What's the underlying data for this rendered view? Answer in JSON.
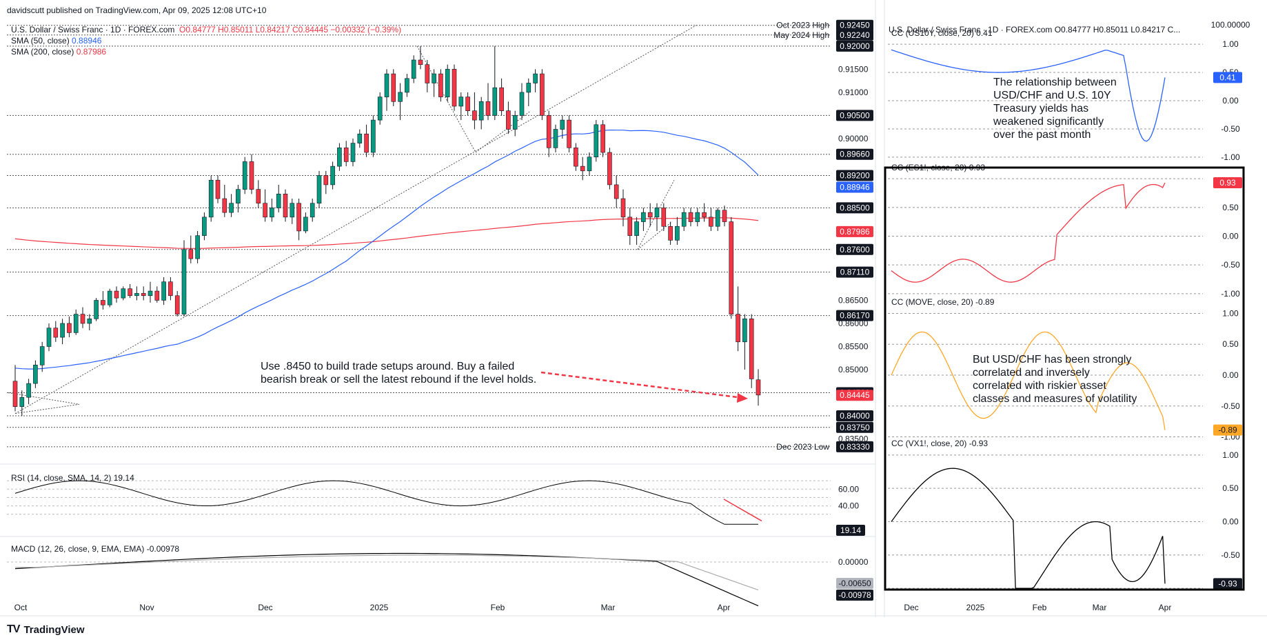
{
  "header": {
    "author": "davidscutt",
    "published": "published on TradingView.com, Apr 09, 2025 12:08 UTC+10",
    "main_title": "U.S. Dollar / Swiss Franc · 1D · FOREX.com",
    "main_ohlc": "O0.84777 H0.85011 L0.84217 C0.84445 −0.00332 (−0.39%)",
    "right_title": "U.S. Dollar / Swiss Franc · 1D · FOREX.com O0.84777 H0.85011 L0.84217 C..."
  },
  "legend": {
    "sma50_label": "SMA (50, close)",
    "sma50_value": "0.88946",
    "sma200_label": "SMA (200, close)",
    "sma200_value": "0.87986"
  },
  "colors": {
    "up": "#089981",
    "down": "#f23645",
    "sma50": "#2962ff",
    "sma200": "#f23645",
    "cc1": "#2962ff",
    "cc2": "#f23645",
    "cc3": "#ffa726",
    "cc4": "#000000",
    "rsi": "#000000",
    "macd": "#000000",
    "signal": "#aaaaaa"
  },
  "annotations": {
    "main_note_1": "Use .8450 to build trade setups around. Buy a failed",
    "main_note_2": "bearish break or sell the latest rebound if the level holds.",
    "cc1_note": [
      "The relationship between",
      "USD/CHF and U.S. 10Y",
      "Treasury yields has",
      "weakened significantly",
      "over the past month"
    ],
    "cc3_note": [
      "But USD/CHF has been strongly",
      "correlated and inversely",
      "correlated with riskier asset",
      "classes and measures of volatility"
    ]
  },
  "level_labels": [
    {
      "value": 0.9245,
      "text": "Oct 2023 High"
    },
    {
      "value": 0.9224,
      "text": "May 2024 High"
    },
    {
      "value": 0.8333,
      "text": "Dec 2023 Low"
    }
  ],
  "price_ticks": [
    "0.91500",
    "0.91000",
    "0.90000",
    "0.86500",
    "0.86000",
    "0.85500",
    "0.85000",
    "0.83500"
  ],
  "price_boxes": [
    {
      "text": "0.92450",
      "value": 0.9245,
      "style": "dark"
    },
    {
      "text": "0.92240",
      "value": 0.9224,
      "style": "dark"
    },
    {
      "text": "0.92000",
      "value": 0.92,
      "style": "dark"
    },
    {
      "text": "0.90500",
      "value": 0.905,
      "style": "dark"
    },
    {
      "text": "0.89660",
      "value": 0.8966,
      "style": "dark"
    },
    {
      "text": "0.89200",
      "value": 0.892,
      "style": "dark"
    },
    {
      "text": "0.88946",
      "value": 0.88946,
      "style": "blue"
    },
    {
      "text": "0.88500",
      "value": 0.885,
      "style": "dark"
    },
    {
      "text": "0.87986",
      "value": 0.87986,
      "style": "red"
    },
    {
      "text": "0.87600",
      "value": 0.876,
      "style": "dark"
    },
    {
      "text": "0.87110",
      "value": 0.8711,
      "style": "dark"
    },
    {
      "text": "0.86170",
      "value": 0.8617,
      "style": "dark"
    },
    {
      "text": "0.84500",
      "value": 0.845,
      "style": "dark"
    },
    {
      "text": "0.84445",
      "value": 0.84445,
      "style": "red"
    },
    {
      "text": "0.84000",
      "value": 0.84,
      "style": "dark"
    },
    {
      "text": "0.83750",
      "value": 0.8375,
      "style": "dark"
    },
    {
      "text": "0.83330",
      "value": 0.8333,
      "style": "dark"
    }
  ],
  "x_labels": [
    "Oct",
    "Nov",
    "Dec",
    "2025",
    "Feb",
    "Mar",
    "Apr"
  ],
  "rsi": {
    "label": "RSI (14, close, SMA, 14, 2)",
    "value": "19.14",
    "ticks": [
      "60.00",
      "40.00"
    ]
  },
  "macd": {
    "label": "MACD (12, 26, close, 9, EMA, EMA)",
    "value": "-0.00978",
    "value2": "-0.00650",
    "ticks": [
      "0.00000"
    ],
    "box1": "-0.00650",
    "box2": "-0.00978"
  },
  "cc_panels": [
    {
      "label": "CC (US10Y, close, 20)",
      "value": "0.41",
      "ticks": [
        "1.00",
        "0.50",
        "0.00",
        "-0.50",
        "-1.00"
      ],
      "box": "0.41"
    },
    {
      "label": "CC (ES1!, close, 20)",
      "value": "0.93",
      "ticks": [
        "0.50",
        "0.00",
        "-0.50",
        "-1.00"
      ],
      "box": "0.93"
    },
    {
      "label": "CC (MOVE, close, 20)",
      "value": "-0.89",
      "ticks": [
        "1.00",
        "0.50",
        "0.00",
        "-0.50",
        "-1.00"
      ],
      "box": "-0.89"
    },
    {
      "label": "CC (VX1!, close, 20)",
      "value": "-0.93",
      "ticks": [
        "1.00",
        "0.50",
        "0.00",
        "-0.50"
      ],
      "box": "-0.93"
    }
  ],
  "right_top_tick": "100.00000",
  "right_x_labels": [
    "Dec",
    "2025",
    "Feb",
    "Mar",
    "Apr"
  ],
  "brand": "TradingView",
  "chart_data": {
    "type": "candlestick",
    "title": "U.S. Dollar / Swiss Franc · 1D · FOREX.com",
    "x_range": [
      "2024-09-26",
      "2025-04-09"
    ],
    "ylim": [
      0.8315,
      0.9255
    ],
    "series_sma50": {
      "name": "SMA (50, close)",
      "last": 0.88946
    },
    "series_sma200": {
      "name": "SMA (200, close)",
      "last": 0.87986
    },
    "candles": [
      [
        0.8475,
        0.851,
        0.841,
        0.842
      ],
      [
        0.842,
        0.8455,
        0.84,
        0.844
      ],
      [
        0.844,
        0.848,
        0.8425,
        0.847
      ],
      [
        0.847,
        0.852,
        0.846,
        0.851
      ],
      [
        0.851,
        0.856,
        0.8495,
        0.855
      ],
      [
        0.855,
        0.86,
        0.854,
        0.859
      ],
      [
        0.859,
        0.8605,
        0.856,
        0.857
      ],
      [
        0.857,
        0.861,
        0.8555,
        0.86
      ],
      [
        0.86,
        0.8615,
        0.857,
        0.858
      ],
      [
        0.858,
        0.863,
        0.8575,
        0.862
      ],
      [
        0.862,
        0.8635,
        0.859,
        0.86
      ],
      [
        0.86,
        0.862,
        0.8585,
        0.861
      ],
      [
        0.861,
        0.8655,
        0.8605,
        0.865
      ],
      [
        0.865,
        0.867,
        0.863,
        0.864
      ],
      [
        0.864,
        0.8675,
        0.8635,
        0.867
      ],
      [
        0.867,
        0.868,
        0.8645,
        0.8655
      ],
      [
        0.8655,
        0.868,
        0.865,
        0.8675
      ],
      [
        0.8675,
        0.8685,
        0.8655,
        0.866
      ],
      [
        0.866,
        0.868,
        0.865,
        0.8665
      ],
      [
        0.8665,
        0.868,
        0.865,
        0.866
      ],
      [
        0.866,
        0.869,
        0.8645,
        0.867
      ],
      [
        0.867,
        0.868,
        0.8645,
        0.865
      ],
      [
        0.865,
        0.87,
        0.864,
        0.869
      ],
      [
        0.869,
        0.87,
        0.865,
        0.866
      ],
      [
        0.866,
        0.867,
        0.8615,
        0.862
      ],
      [
        0.862,
        0.878,
        0.8615,
        0.876
      ],
      [
        0.876,
        0.879,
        0.873,
        0.874
      ],
      [
        0.874,
        0.88,
        0.873,
        0.879
      ],
      [
        0.879,
        0.884,
        0.878,
        0.883
      ],
      [
        0.883,
        0.892,
        0.882,
        0.891
      ],
      [
        0.891,
        0.892,
        0.886,
        0.887
      ],
      [
        0.887,
        0.89,
        0.883,
        0.884
      ],
      [
        0.884,
        0.888,
        0.883,
        0.886
      ],
      [
        0.886,
        0.89,
        0.884,
        0.889
      ],
      [
        0.889,
        0.896,
        0.888,
        0.895
      ],
      [
        0.895,
        0.8966,
        0.888,
        0.889
      ],
      [
        0.889,
        0.891,
        0.885,
        0.886
      ],
      [
        0.886,
        0.889,
        0.882,
        0.883
      ],
      [
        0.883,
        0.887,
        0.882,
        0.885
      ],
      [
        0.885,
        0.89,
        0.884,
        0.888
      ],
      [
        0.888,
        0.889,
        0.882,
        0.883
      ],
      [
        0.883,
        0.887,
        0.8815,
        0.886
      ],
      [
        0.886,
        0.887,
        0.878,
        0.88
      ],
      [
        0.88,
        0.884,
        0.8795,
        0.883
      ],
      [
        0.883,
        0.887,
        0.882,
        0.886
      ],
      [
        0.886,
        0.893,
        0.885,
        0.892
      ],
      [
        0.892,
        0.893,
        0.888,
        0.89
      ],
      [
        0.89,
        0.895,
        0.889,
        0.894
      ],
      [
        0.894,
        0.899,
        0.893,
        0.898
      ],
      [
        0.898,
        0.8995,
        0.894,
        0.895
      ],
      [
        0.895,
        0.9,
        0.894,
        0.899
      ],
      [
        0.899,
        0.902,
        0.898,
        0.901
      ],
      [
        0.901,
        0.903,
        0.896,
        0.897
      ],
      [
        0.897,
        0.905,
        0.896,
        0.904
      ],
      [
        0.904,
        0.91,
        0.903,
        0.909
      ],
      [
        0.909,
        0.915,
        0.906,
        0.914
      ],
      [
        0.914,
        0.915,
        0.907,
        0.908
      ],
      [
        0.908,
        0.912,
        0.904,
        0.91
      ],
      [
        0.91,
        0.914,
        0.909,
        0.913
      ],
      [
        0.913,
        0.918,
        0.912,
        0.917
      ],
      [
        0.917,
        0.92,
        0.915,
        0.916
      ],
      [
        0.916,
        0.917,
        0.91,
        0.912
      ],
      [
        0.912,
        0.915,
        0.909,
        0.914
      ],
      [
        0.914,
        0.915,
        0.908,
        0.909
      ],
      [
        0.909,
        0.916,
        0.908,
        0.915
      ],
      [
        0.915,
        0.916,
        0.906,
        0.907
      ],
      [
        0.907,
        0.91,
        0.904,
        0.909
      ],
      [
        0.909,
        0.91,
        0.905,
        0.906
      ],
      [
        0.906,
        0.91,
        0.902,
        0.904
      ],
      [
        0.904,
        0.909,
        0.902,
        0.908
      ],
      [
        0.908,
        0.912,
        0.904,
        0.905
      ],
      [
        0.905,
        0.92,
        0.904,
        0.911
      ],
      [
        0.911,
        0.913,
        0.905,
        0.906
      ],
      [
        0.906,
        0.908,
        0.901,
        0.902
      ],
      [
        0.902,
        0.906,
        0.9005,
        0.905
      ],
      [
        0.905,
        0.912,
        0.904,
        0.91
      ],
      [
        0.91,
        0.913,
        0.907,
        0.912
      ],
      [
        0.912,
        0.915,
        0.91,
        0.914
      ],
      [
        0.914,
        0.915,
        0.904,
        0.905
      ],
      [
        0.905,
        0.906,
        0.896,
        0.898
      ],
      [
        0.898,
        0.903,
        0.897,
        0.902
      ],
      [
        0.902,
        0.905,
        0.9,
        0.904
      ],
      [
        0.904,
        0.905,
        0.897,
        0.898
      ],
      [
        0.898,
        0.899,
        0.893,
        0.894
      ],
      [
        0.894,
        0.896,
        0.891,
        0.893
      ],
      [
        0.893,
        0.897,
        0.892,
        0.896
      ],
      [
        0.896,
        0.904,
        0.895,
        0.903
      ],
      [
        0.903,
        0.904,
        0.896,
        0.897
      ],
      [
        0.897,
        0.898,
        0.889,
        0.89
      ],
      [
        0.89,
        0.892,
        0.885,
        0.887
      ],
      [
        0.887,
        0.889,
        0.881,
        0.883
      ],
      [
        0.883,
        0.885,
        0.877,
        0.879
      ],
      [
        0.879,
        0.883,
        0.877,
        0.882
      ],
      [
        0.882,
        0.885,
        0.88,
        0.884
      ],
      [
        0.884,
        0.886,
        0.881,
        0.883
      ],
      [
        0.883,
        0.886,
        0.88,
        0.885
      ],
      [
        0.885,
        0.886,
        0.88,
        0.881
      ],
      [
        0.881,
        0.882,
        0.877,
        0.878
      ],
      [
        0.878,
        0.883,
        0.877,
        0.881
      ],
      [
        0.881,
        0.885,
        0.88,
        0.884
      ],
      [
        0.884,
        0.885,
        0.881,
        0.882
      ],
      [
        0.882,
        0.885,
        0.881,
        0.884
      ],
      [
        0.884,
        0.886,
        0.882,
        0.883
      ],
      [
        0.883,
        0.885,
        0.88,
        0.881
      ],
      [
        0.881,
        0.885,
        0.88,
        0.8845
      ],
      [
        0.8845,
        0.8855,
        0.881,
        0.882
      ],
      [
        0.882,
        0.883,
        0.861,
        0.862
      ],
      [
        0.862,
        0.868,
        0.854,
        0.856
      ],
      [
        0.856,
        0.862,
        0.85,
        0.861
      ],
      [
        0.861,
        0.862,
        0.846,
        0.848
      ],
      [
        0.8478,
        0.8501,
        0.8422,
        0.8445
      ]
    ],
    "rsi_last": 19.14,
    "macd_last": -0.00978,
    "signal_last": -0.0065,
    "correlations": [
      {
        "name": "CC (US10Y, close, 20)",
        "last": 0.41
      },
      {
        "name": "CC (ES1!, close, 20)",
        "last": 0.93
      },
      {
        "name": "CC (MOVE, close, 20)",
        "last": -0.89
      },
      {
        "name": "CC (VX1!, close, 20)",
        "last": -0.93
      }
    ]
  }
}
